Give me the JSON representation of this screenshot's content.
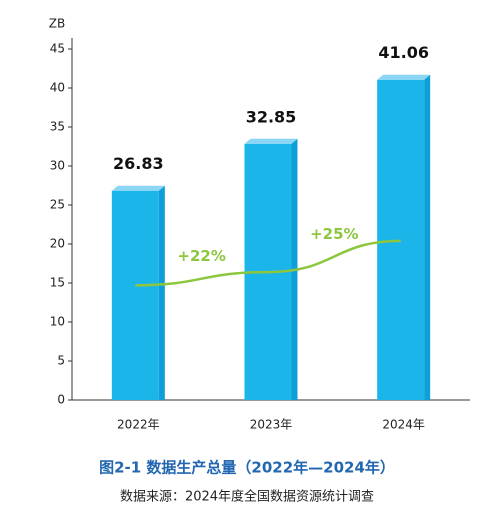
{
  "chart_data": {
    "type": "bar",
    "title": "图2-1 数据生产总量（2022年—2024年）",
    "source": "数据来源：2024年度全国数据资源统计调查",
    "y_label": "ZB",
    "categories": [
      "2022年",
      "2023年",
      "2024年"
    ],
    "values": [
      26.83,
      32.85,
      41.06
    ],
    "value_labels": [
      "26.83",
      "32.85",
      "41.06"
    ],
    "color": "#1bb5ea",
    "trend": {
      "color": "#8dc63f",
      "values": [
        14.7,
        16.4,
        20.4
      ]
    },
    "annotations": [
      "+22%",
      "+25%"
    ],
    "ylim": [
      0,
      45
    ],
    "yticks": [
      0,
      5,
      10,
      15,
      20,
      25,
      30,
      35,
      40,
      45
    ]
  }
}
